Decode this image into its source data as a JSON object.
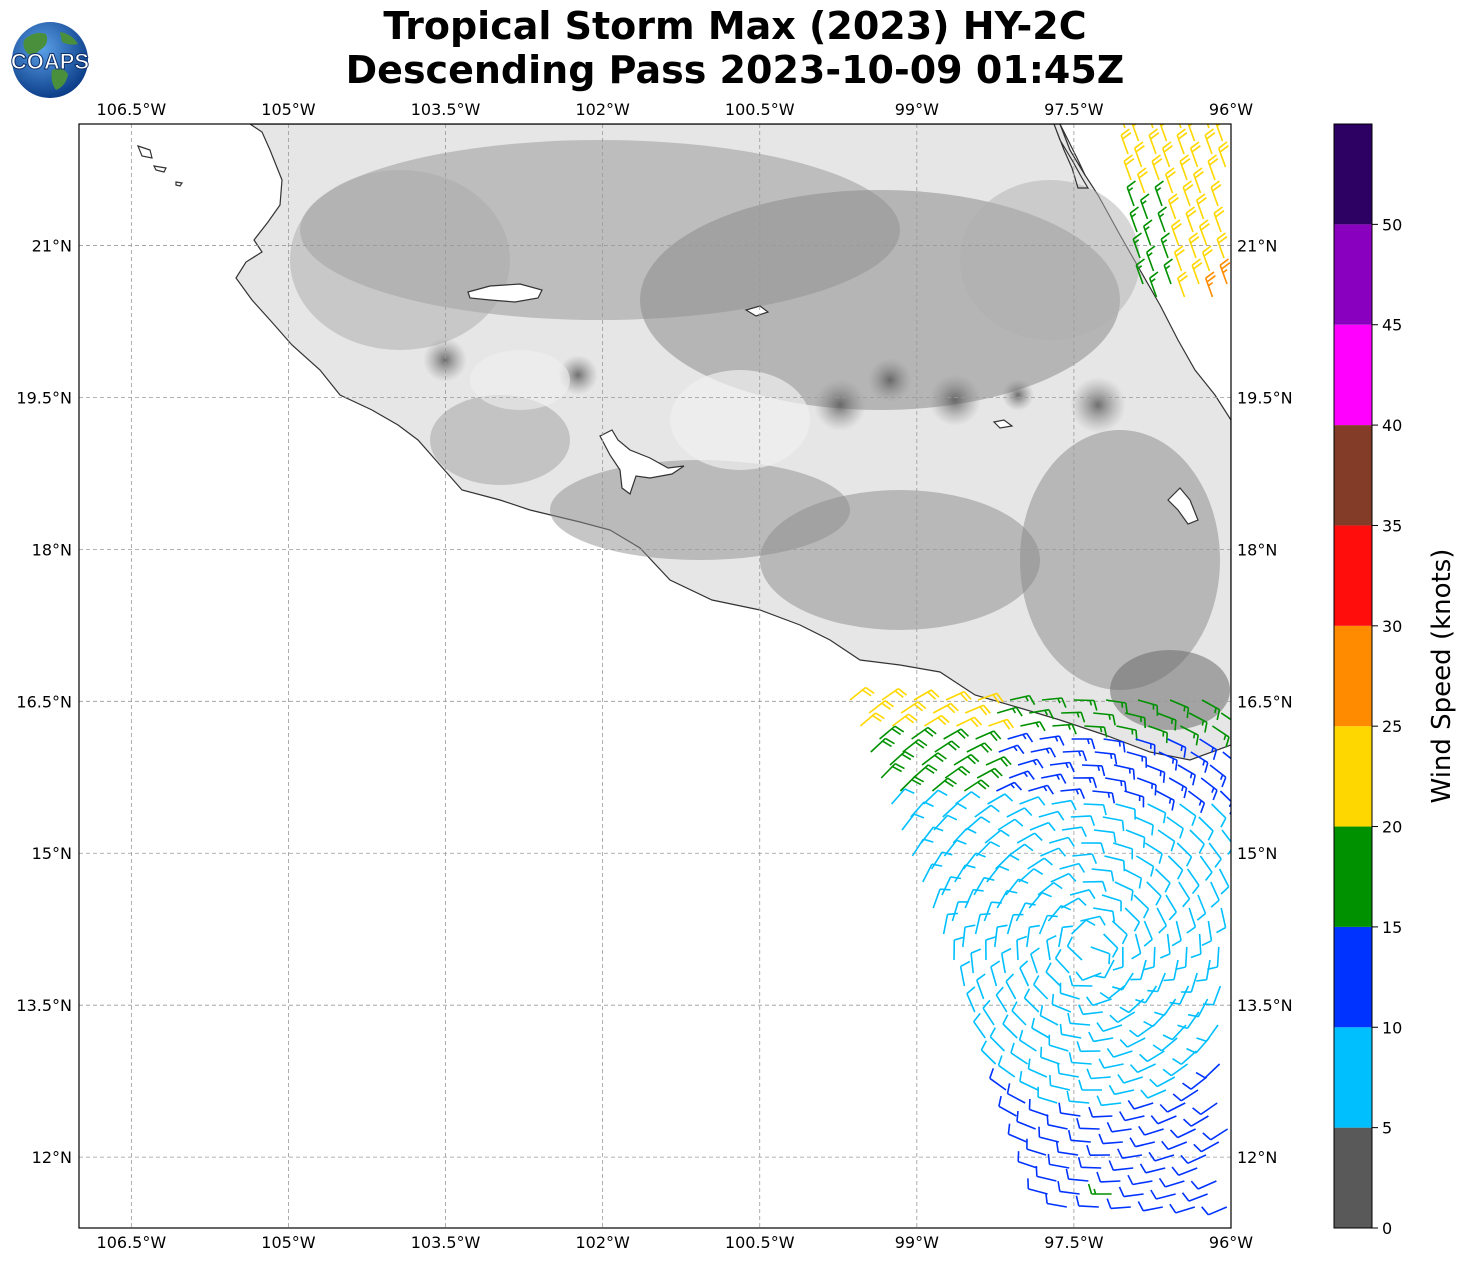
{
  "title": {
    "line1": "Tropical Storm Max (2023) HY-2C",
    "line2": "Descending Pass 2023-10-09 01:45Z"
  },
  "logo": {
    "text": "COAPS",
    "globe_color": "#1f5fa8",
    "land_color": "#3f8a3a"
  },
  "map": {
    "lon_range": [
      -107,
      -96
    ],
    "lat_range": [
      11.3,
      22.2
    ],
    "lon_ticks": [
      "106.5°W",
      "105°W",
      "103.5°W",
      "102°W",
      "100.5°W",
      "99°W",
      "97.5°W",
      "96°W"
    ],
    "lon_values": [
      -106.5,
      -105,
      -103.5,
      -102,
      -100.5,
      -99,
      -97.5,
      -96
    ],
    "lat_ticks": [
      "21°N",
      "19.5°N",
      "18°N",
      "16.5°N",
      "15°N",
      "13.5°N",
      "12°N"
    ],
    "lat_values": [
      21,
      19.5,
      18,
      16.5,
      15,
      13.5,
      12
    ],
    "gridlines": true,
    "land_shading": "grayscale topography",
    "coastline_color": "#333333"
  },
  "colorbar": {
    "label": "Wind Speed (knots)",
    "ticks": [
      "0",
      "5",
      "10",
      "15",
      "20",
      "25",
      "30",
      "35",
      "40",
      "45",
      "50"
    ],
    "bins": [
      {
        "min": 0,
        "max": 5,
        "color": "#595959"
      },
      {
        "min": 5,
        "max": 10,
        "color": "#00bfff"
      },
      {
        "min": 10,
        "max": 15,
        "color": "#0033ff"
      },
      {
        "min": 15,
        "max": 20,
        "color": "#009100"
      },
      {
        "min": 20,
        "max": 25,
        "color": "#ffd700"
      },
      {
        "min": 25,
        "max": 30,
        "color": "#ff8c00"
      },
      {
        "min": 30,
        "max": 35,
        "color": "#ff0d0d"
      },
      {
        "min": 35,
        "max": 40,
        "color": "#823c28"
      },
      {
        "min": 40,
        "max": 45,
        "color": "#ff00ff"
      },
      {
        "min": 45,
        "max": 50,
        "color": "#8a00bf"
      },
      {
        "min": 50,
        "max": 55,
        "color": "#2d0063"
      }
    ]
  }
}
